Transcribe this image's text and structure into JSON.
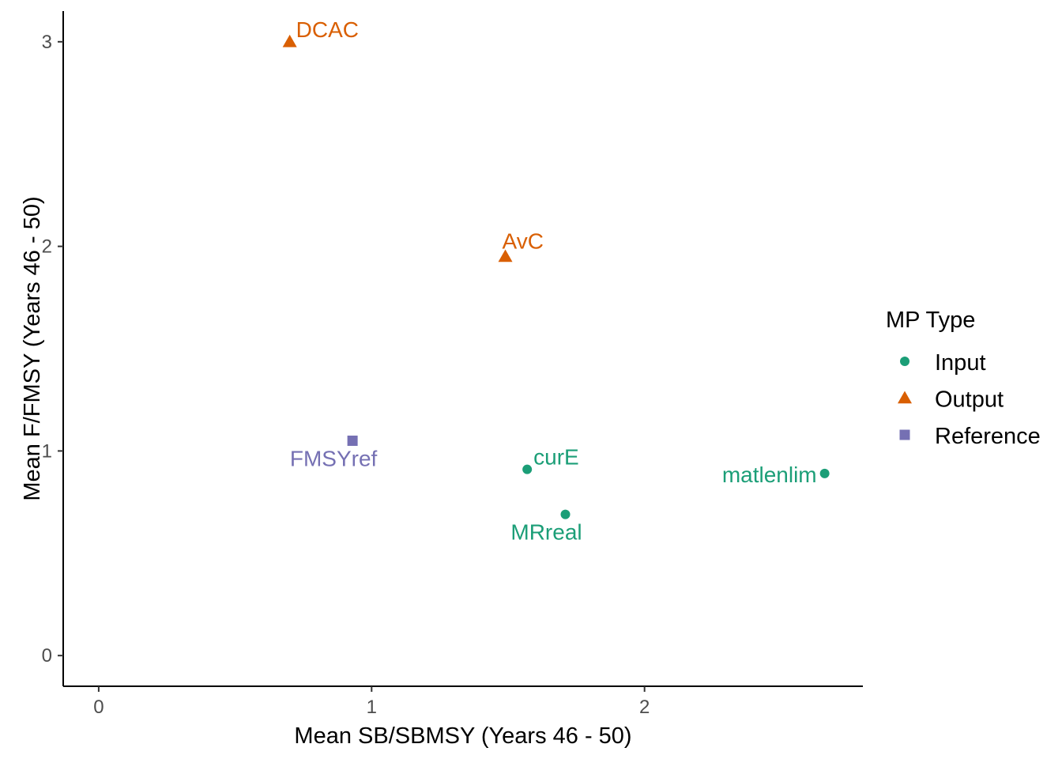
{
  "chart_data": {
    "type": "scatter",
    "title": "",
    "xlabel": "Mean SB/SBMSY (Years 46 - 50)",
    "ylabel": "Mean F/FMSY (Years 46 - 50)",
    "xlim": [
      -0.13,
      2.8
    ],
    "ylim": [
      -0.15,
      3.15
    ],
    "x_ticks": [
      0,
      1,
      2
    ],
    "y_ticks": [
      0,
      1,
      2,
      3
    ],
    "x_tick_labels": [
      "0",
      "1",
      "2"
    ],
    "y_tick_labels": [
      "0",
      "1",
      "2",
      "3"
    ],
    "grid": false,
    "legend": {
      "title": "MP Type",
      "placement": "right",
      "entries": [
        {
          "name": "Input",
          "shape": "circle",
          "color": "#1b9e77"
        },
        {
          "name": "Output",
          "shape": "triangle",
          "color": "#d95f02"
        },
        {
          "name": "Reference",
          "shape": "square",
          "color": "#7570b3"
        }
      ]
    },
    "points": [
      {
        "label": "DCAC",
        "type": "Output",
        "x": 0.7,
        "y": 3.0,
        "label_pos": "above-right"
      },
      {
        "label": "AvC",
        "type": "Output",
        "x": 1.49,
        "y": 1.95,
        "label_pos": "above"
      },
      {
        "label": "FMSYref",
        "type": "Reference",
        "x": 0.93,
        "y": 1.05,
        "label_pos": "below-left"
      },
      {
        "label": "curE",
        "type": "Input",
        "x": 1.57,
        "y": 0.91,
        "label_pos": "above-right"
      },
      {
        "label": "matlenlim",
        "type": "Input",
        "x": 2.66,
        "y": 0.89,
        "label_pos": "left"
      },
      {
        "label": "MRreal",
        "type": "Input",
        "x": 1.71,
        "y": 0.69,
        "label_pos": "below-left"
      }
    ]
  }
}
